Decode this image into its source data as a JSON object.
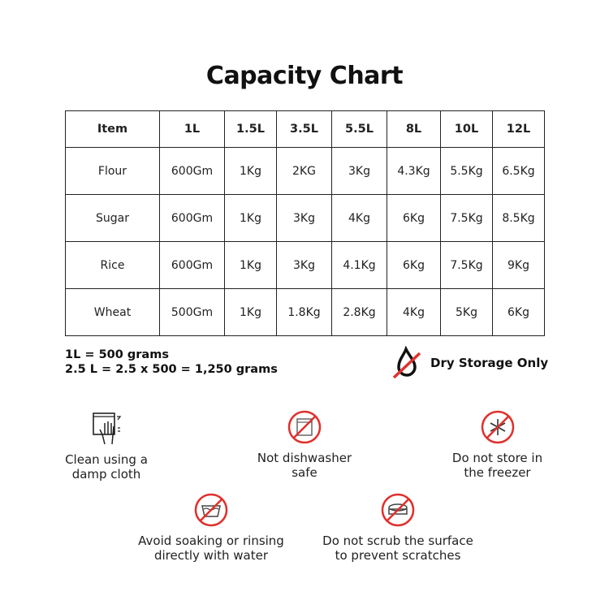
{
  "title": "Capacity Chart",
  "table": {
    "headers": [
      "Item",
      "1L",
      "1.5L",
      "3.5L",
      "5.5L",
      "8L",
      "10L",
      "12L"
    ],
    "rows": [
      [
        "Flour",
        "600Gm",
        "1Kg",
        "2KG",
        "3Kg",
        "4.3Kg",
        "5.5Kg",
        "6.5Kg"
      ],
      [
        "Sugar",
        "600Gm",
        "1Kg",
        "3Kg",
        "4Kg",
        "6Kg",
        "7.5Kg",
        "8.5Kg"
      ],
      [
        "Rice",
        "600Gm",
        "1Kg",
        "3Kg",
        "4.1Kg",
        "6Kg",
        "7.5Kg",
        "9Kg"
      ],
      [
        "Wheat",
        "500Gm",
        "1Kg",
        "1.8Kg",
        "2.8Kg",
        "4Kg",
        "5Kg",
        "6Kg"
      ]
    ]
  },
  "notes": [
    "1L = 500 grams",
    "2.5 L = 2.5 x 500 = 1,250 grams"
  ],
  "dry_storage": {
    "label": "Dry Storage Only",
    "icon": "no-water-drop-icon"
  },
  "care": [
    {
      "line1": "Clean using a",
      "line2": "damp cloth",
      "icon": "hand-wipe-icon"
    },
    {
      "line1": "Not dishwasher",
      "line2": "safe",
      "icon": "no-dishwasher-icon"
    },
    {
      "line1": "Do not store in",
      "line2": "the freezer",
      "icon": "no-freezer-icon"
    },
    {
      "line1": "Avoid soaking or rinsing",
      "line2": "directly with water",
      "icon": "no-soaking-icon"
    },
    {
      "line1": "Do not scrub the surface",
      "line2": "to prevent scratches",
      "icon": "no-scrub-icon"
    }
  ],
  "colors": {
    "prohibit_red": "#e0302c",
    "text": "#111111"
  }
}
